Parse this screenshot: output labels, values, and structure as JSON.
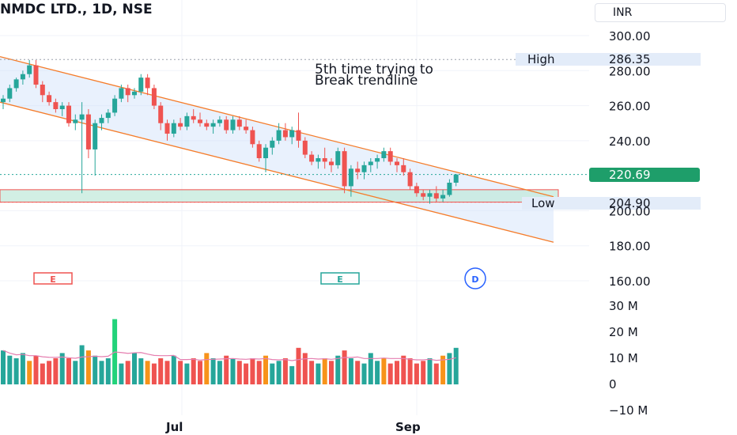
{
  "header": {
    "title": "NMDC LTD., 1D, NSE",
    "currency": "INR"
  },
  "colors": {
    "up": "#26a69a",
    "up_bright": "#22d37a",
    "down": "#ef5350",
    "down_dark": "#dd2c3a",
    "orange": "#f7931a",
    "channel": "#f57c2a",
    "ma": "#e57fb0",
    "label": "#1e9e6a"
  },
  "chart_data": {
    "type": "candlestick",
    "title": "NMDC LTD., 1D, NSE",
    "price_axis": {
      "ticks": [
        "300.00",
        "280.00",
        "260.00",
        "240.00",
        "200.00",
        "180.00",
        "160.00"
      ],
      "range": [
        160,
        300
      ]
    },
    "volume_axis": {
      "ticks": [
        "30 M",
        "20 M",
        "10 M",
        "0",
        "−10 M"
      ],
      "range": [
        -10,
        30
      ]
    },
    "time_axis": {
      "ticks": [
        "Jul",
        "Sep"
      ]
    },
    "levels": {
      "high_label": "High",
      "high_value": "286.35",
      "low_label": "Low",
      "low_value": "204.90",
      "last_value": "220.69"
    },
    "annotation": [
      "5th time trying to",
      "Break trendline"
    ],
    "events": [
      "E",
      "E",
      "D"
    ],
    "ohlc": [
      [
        262,
        266,
        258,
        264
      ],
      [
        264,
        272,
        262,
        270
      ],
      [
        270,
        276,
        268,
        275
      ],
      [
        275,
        280,
        272,
        278
      ],
      [
        278,
        286,
        276,
        283
      ],
      [
        283,
        286,
        270,
        272
      ],
      [
        272,
        274,
        262,
        266
      ],
      [
        266,
        268,
        260,
        262
      ],
      [
        262,
        264,
        256,
        258
      ],
      [
        258,
        262,
        254,
        260
      ],
      [
        260,
        262,
        248,
        250
      ],
      [
        250,
        255,
        246,
        252
      ],
      [
        252,
        262,
        210,
        255
      ],
      [
        255,
        258,
        230,
        235
      ],
      [
        235,
        252,
        220,
        250
      ],
      [
        250,
        255,
        246,
        253
      ],
      [
        253,
        258,
        250,
        256
      ],
      [
        256,
        266,
        254,
        264
      ],
      [
        264,
        272,
        262,
        270
      ],
      [
        270,
        272,
        262,
        266
      ],
      [
        266,
        270,
        264,
        268
      ],
      [
        268,
        278,
        266,
        276
      ],
      [
        276,
        278,
        266,
        270
      ],
      [
        270,
        272,
        258,
        260
      ],
      [
        260,
        262,
        246,
        250
      ],
      [
        250,
        252,
        240,
        244
      ],
      [
        244,
        252,
        242,
        250
      ],
      [
        250,
        253,
        246,
        248
      ],
      [
        248,
        256,
        246,
        254
      ],
      [
        254,
        258,
        250,
        252
      ],
      [
        252,
        256,
        248,
        250
      ],
      [
        250,
        252,
        246,
        248
      ],
      [
        248,
        252,
        244,
        250
      ],
      [
        250,
        254,
        248,
        252
      ],
      [
        252,
        254,
        244,
        246
      ],
      [
        246,
        254,
        244,
        252
      ],
      [
        252,
        254,
        246,
        248
      ],
      [
        248,
        252,
        244,
        246
      ],
      [
        246,
        248,
        236,
        238
      ],
      [
        238,
        240,
        228,
        230
      ],
      [
        230,
        238,
        222,
        236
      ],
      [
        236,
        242,
        232,
        240
      ],
      [
        240,
        250,
        238,
        246
      ],
      [
        246,
        250,
        240,
        242
      ],
      [
        242,
        248,
        238,
        246
      ],
      [
        246,
        256,
        236,
        240
      ],
      [
        240,
        242,
        230,
        232
      ],
      [
        232,
        234,
        226,
        228
      ],
      [
        228,
        232,
        224,
        230
      ],
      [
        230,
        236,
        224,
        228
      ],
      [
        228,
        230,
        222,
        226
      ],
      [
        226,
        236,
        224,
        234
      ],
      [
        234,
        236,
        210,
        214
      ],
      [
        214,
        226,
        208,
        224
      ],
      [
        224,
        228,
        218,
        222
      ],
      [
        222,
        228,
        218,
        226
      ],
      [
        226,
        230,
        222,
        228
      ],
      [
        228,
        232,
        224,
        230
      ],
      [
        230,
        236,
        228,
        234
      ],
      [
        234,
        236,
        226,
        228
      ],
      [
        228,
        230,
        222,
        226
      ],
      [
        226,
        230,
        220,
        222
      ],
      [
        222,
        224,
        212,
        214
      ],
      [
        214,
        216,
        208,
        210
      ],
      [
        210,
        212,
        206,
        208
      ],
      [
        208,
        212,
        204,
        210
      ],
      [
        210,
        214,
        205,
        207
      ],
      [
        207,
        212,
        205,
        209
      ],
      [
        209,
        218,
        208,
        216
      ],
      [
        216,
        221,
        214,
        220.69
      ]
    ],
    "volume": [
      13,
      11,
      10,
      12,
      9,
      11,
      8,
      9,
      10,
      12,
      10,
      9,
      15,
      13,
      11,
      9,
      10,
      25,
      8,
      9,
      12,
      10,
      9,
      8,
      10,
      9,
      11,
      9,
      8,
      10,
      9,
      12,
      10,
      9,
      11,
      10,
      9,
      8,
      10,
      9,
      11,
      8,
      9,
      10,
      7,
      14,
      12,
      9,
      8,
      10,
      9,
      11,
      13,
      10,
      9,
      8,
      12,
      9,
      10,
      8,
      9,
      11,
      10,
      8,
      9,
      10,
      8,
      11,
      12,
      14
    ]
  }
}
